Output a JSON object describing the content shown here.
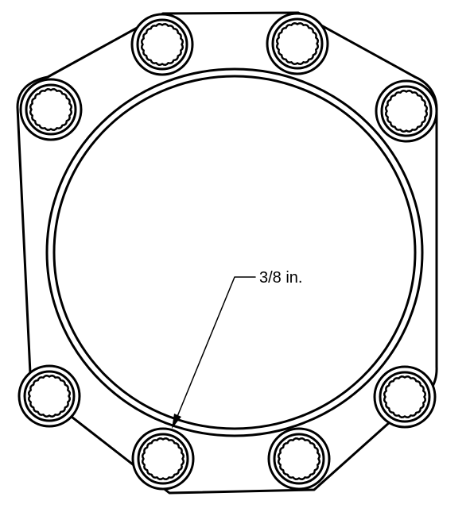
{
  "diagram": {
    "subject": "gasket",
    "bolt_hole_count": 8,
    "callout": {
      "label": "3/8 in."
    },
    "colors": {
      "ink": "#000000",
      "background": "#ffffff"
    }
  }
}
